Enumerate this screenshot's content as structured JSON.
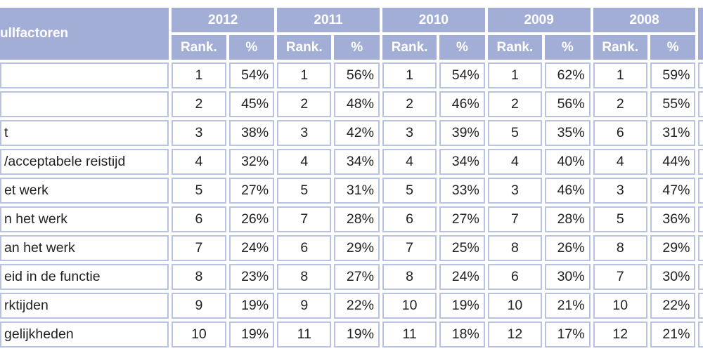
{
  "header": {
    "label": "ullfactoren",
    "years": [
      "2012",
      "2011",
      "2010",
      "2009",
      "2008"
    ],
    "rank_label": "Rank.",
    "pct_label": "%"
  },
  "rows": [
    {
      "label": "",
      "values": [
        [
          "1",
          "54%"
        ],
        [
          "1",
          "56%"
        ],
        [
          "1",
          "54%"
        ],
        [
          "1",
          "62%"
        ],
        [
          "1",
          "59%"
        ]
      ]
    },
    {
      "label": "",
      "values": [
        [
          "2",
          "45%"
        ],
        [
          "2",
          "48%"
        ],
        [
          "2",
          "46%"
        ],
        [
          "2",
          "56%"
        ],
        [
          "2",
          "55%"
        ]
      ]
    },
    {
      "label": "t",
      "values": [
        [
          "3",
          "38%"
        ],
        [
          "3",
          "42%"
        ],
        [
          "3",
          "39%"
        ],
        [
          "5",
          "35%"
        ],
        [
          "6",
          "31%"
        ]
      ]
    },
    {
      "label": "/acceptabele reistijd",
      "values": [
        [
          "4",
          "32%"
        ],
        [
          "4",
          "34%"
        ],
        [
          "4",
          "34%"
        ],
        [
          "4",
          "40%"
        ],
        [
          "4",
          "44%"
        ]
      ]
    },
    {
      "label": "et werk",
      "values": [
        [
          "5",
          "27%"
        ],
        [
          "5",
          "31%"
        ],
        [
          "5",
          "33%"
        ],
        [
          "3",
          "46%"
        ],
        [
          "3",
          "47%"
        ]
      ]
    },
    {
      "label": "n het werk",
      "values": [
        [
          "6",
          "26%"
        ],
        [
          "7",
          "28%"
        ],
        [
          "6",
          "27%"
        ],
        [
          "7",
          "28%"
        ],
        [
          "5",
          "36%"
        ]
      ]
    },
    {
      "label": "an het werk",
      "values": [
        [
          "7",
          "24%"
        ],
        [
          "6",
          "29%"
        ],
        [
          "7",
          "25%"
        ],
        [
          "8",
          "26%"
        ],
        [
          "8",
          "29%"
        ]
      ]
    },
    {
      "label": "eid in de functie",
      "values": [
        [
          "8",
          "23%"
        ],
        [
          "8",
          "27%"
        ],
        [
          "8",
          "24%"
        ],
        [
          "6",
          "30%"
        ],
        [
          "7",
          "30%"
        ]
      ]
    },
    {
      "label": "rktijden",
      "values": [
        [
          "9",
          "19%"
        ],
        [
          "9",
          "22%"
        ],
        [
          "10",
          "19%"
        ],
        [
          "10",
          "21%"
        ],
        [
          "10",
          "22%"
        ]
      ]
    },
    {
      "label": "gelijkheden",
      "values": [
        [
          "10",
          "19%"
        ],
        [
          "11",
          "19%"
        ],
        [
          "11",
          "18%"
        ],
        [
          "12",
          "17%"
        ],
        [
          "12",
          "21%"
        ]
      ]
    }
  ]
}
